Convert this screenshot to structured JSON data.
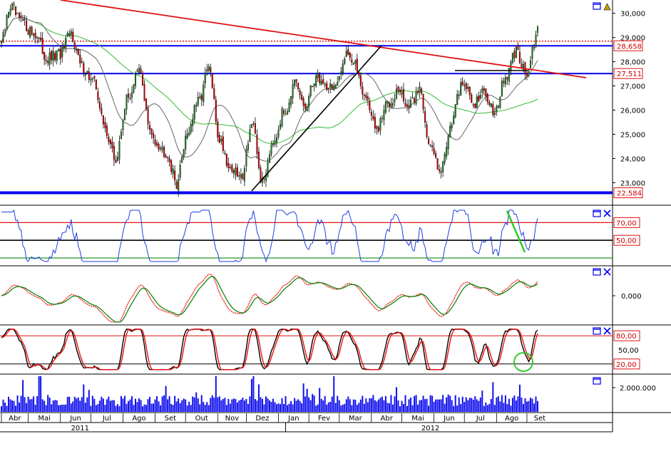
{
  "colors": {
    "bull": "#1f7a1f",
    "bear": "#cc0000",
    "wick": "#000000",
    "trend_red": "#e01010",
    "trend_black": "#000000",
    "support_blue": "#0000ee",
    "ma_slow": "#33bb33",
    "ma_fast": "#666666",
    "rsi": "#1f3fe0",
    "osc_red": "#ee1111",
    "osc_green": "#118811",
    "stoch_k": "#000000",
    "stoch_d": "#ee1111",
    "volume": "#1111ee",
    "green_marker": "#22cc22",
    "grid": "#888888",
    "level_box_text": "#cc0000"
  },
  "icons": [
    "window-restore-icon",
    "close-icon",
    "pin-icon"
  ],
  "chart_data": [
    {
      "type": "candlestick",
      "panel": "price",
      "y_ticks": [
        "30,000",
        "29,000",
        "28,000",
        "27,000",
        "26,000",
        "25,000",
        "24,000",
        "23,000"
      ],
      "y_tick_values": [
        30000,
        29000,
        28000,
        27000,
        26000,
        25000,
        24000,
        23000
      ],
      "ylim": [
        22100,
        30550
      ],
      "level_labels": [
        {
          "text": "28,658",
          "value": 28658,
          "style": "solid-blue"
        },
        {
          "text": "27,511",
          "value": 27511,
          "style": "solid-blue"
        },
        {
          "text": "22,584",
          "value": 22584,
          "style": "thick-blue"
        }
      ],
      "dotted_level": 28850,
      "anchors": [
        [
          0,
          28800
        ],
        [
          5,
          30300
        ],
        [
          10,
          29700
        ],
        [
          18,
          29200
        ],
        [
          26,
          28100
        ],
        [
          33,
          28300
        ],
        [
          39,
          29150
        ],
        [
          45,
          27800
        ],
        [
          52,
          27100
        ],
        [
          58,
          25200
        ],
        [
          64,
          23900
        ],
        [
          70,
          26400
        ],
        [
          77,
          27600
        ],
        [
          84,
          24900
        ],
        [
          92,
          24300
        ],
        [
          98,
          23000
        ],
        [
          104,
          25100
        ],
        [
          110,
          26300
        ],
        [
          116,
          27700
        ],
        [
          122,
          24800
        ],
        [
          128,
          23600
        ],
        [
          134,
          23200
        ],
        [
          140,
          25400
        ],
        [
          146,
          23000
        ],
        [
          152,
          24800
        ],
        [
          158,
          25900
        ],
        [
          164,
          27000
        ],
        [
          170,
          26100
        ],
        [
          176,
          27400
        ],
        [
          182,
          27000
        ],
        [
          188,
          27000
        ],
        [
          193,
          28500
        ],
        [
          198,
          27800
        ],
        [
          204,
          26500
        ],
        [
          210,
          25100
        ],
        [
          216,
          26300
        ],
        [
          222,
          26800
        ],
        [
          228,
          26100
        ],
        [
          234,
          26900
        ],
        [
          240,
          24400
        ],
        [
          246,
          23600
        ],
        [
          252,
          25600
        ],
        [
          258,
          27200
        ],
        [
          264,
          26300
        ],
        [
          270,
          26700
        ],
        [
          276,
          26000
        ],
        [
          282,
          27300
        ],
        [
          288,
          28400
        ],
        [
          294,
          27500
        ],
        [
          300,
          29200
        ]
      ],
      "notes": "Daily OHLC candles from Apr 2011 to Sep 2012 with grey and green moving averages, a red descending trendline and a black rising trendline."
    },
    {
      "type": "line",
      "panel": "rsi",
      "y_ticks": [
        "70,00",
        "50,00"
      ],
      "levels": [
        70,
        50,
        30
      ],
      "ylim": [
        22,
        88
      ]
    },
    {
      "type": "line",
      "panel": "oscillator",
      "y_ticks": [
        "0,000"
      ],
      "ylim": [
        -1.3,
        1.3
      ]
    },
    {
      "type": "line",
      "panel": "stochastic",
      "y_ticks": [
        "80,00",
        "50,00",
        "20,00"
      ],
      "levels": [
        80,
        20
      ],
      "ylim": [
        0,
        100
      ]
    },
    {
      "type": "bar",
      "panel": "volume",
      "y_ticks": [
        "2.000.000"
      ],
      "ylim": [
        0,
        3000000
      ]
    }
  ],
  "x_axis": {
    "months": [
      {
        "label": "Abr",
        "day": 0
      },
      {
        "label": "Mai",
        "day": 15
      },
      {
        "label": "Jun",
        "day": 33
      },
      {
        "label": "Jul",
        "day": 50
      },
      {
        "label": "Ago",
        "day": 68
      },
      {
        "label": "Set",
        "day": 86
      },
      {
        "label": "Out",
        "day": 103
      },
      {
        "label": "Nov",
        "day": 121
      },
      {
        "label": "Dez",
        "day": 137
      },
      {
        "label": "Jan",
        "day": 155
      },
      {
        "label": "Fev",
        "day": 172
      },
      {
        "label": "Mar",
        "day": 189
      },
      {
        "label": "Abr",
        "day": 207
      },
      {
        "label": "Mai",
        "day": 224
      },
      {
        "label": "Jun",
        "day": 242
      },
      {
        "label": "Jul",
        "day": 259
      },
      {
        "label": "Ago",
        "day": 277
      },
      {
        "label": "Set",
        "day": 294
      }
    ],
    "years": [
      {
        "label": "2011",
        "day": 44
      },
      {
        "label": "2012",
        "day": 240
      }
    ],
    "year_break_day": 147,
    "days": 301
  }
}
